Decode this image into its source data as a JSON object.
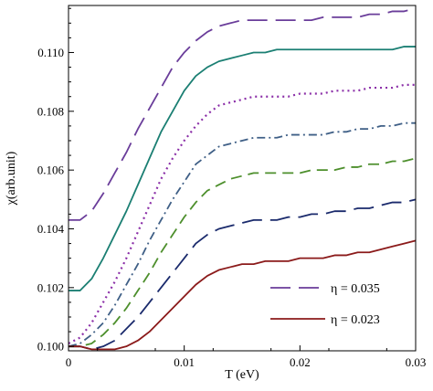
{
  "chart_data": {
    "type": "line",
    "xlabel": "T (eV)",
    "ylabel": "χ(arb.unit)",
    "xlim": [
      0,
      0.03
    ],
    "ylim": [
      0.09985,
      0.1116
    ],
    "xticks": [
      0,
      0.01,
      0.02,
      0.03
    ],
    "xtick_labels": [
      "0",
      "0.01",
      "0.02",
      "0.03"
    ],
    "yticks": [
      0.1,
      0.102,
      0.104,
      0.106,
      0.108,
      0.11
    ],
    "ytick_labels": [
      "0.100",
      "0.102",
      "0.104",
      "0.106",
      "0.108",
      "0.110"
    ],
    "grid": false,
    "legend_position": "bottom-right",
    "series": [
      {
        "name": "η = 0.035",
        "color": "#6a3d9a",
        "dash": "longdash",
        "x": [
          0,
          0.001,
          0.002,
          0.003,
          0.004,
          0.005,
          0.006,
          0.007,
          0.008,
          0.009,
          0.01,
          0.011,
          0.012,
          0.013,
          0.014,
          0.015,
          0.016,
          0.017,
          0.018,
          0.019,
          0.02,
          0.021,
          0.022,
          0.023,
          0.024,
          0.025,
          0.026,
          0.027,
          0.028,
          0.029,
          0.03
        ],
        "y": [
          0.1043,
          0.1043,
          0.1046,
          0.1052,
          0.1059,
          0.1066,
          0.1074,
          0.1081,
          0.1088,
          0.1095,
          0.11,
          0.1104,
          0.1107,
          0.1109,
          0.111,
          0.1111,
          0.1111,
          0.1111,
          0.1111,
          0.1111,
          0.1111,
          0.1111,
          0.1112,
          0.1112,
          0.1112,
          0.1112,
          0.1113,
          0.1113,
          0.1114,
          0.1114,
          0.1115
        ]
      },
      {
        "color": "#1b7f73",
        "dash": "solid",
        "x": [
          0,
          0.001,
          0.002,
          0.003,
          0.004,
          0.005,
          0.006,
          0.007,
          0.008,
          0.009,
          0.01,
          0.011,
          0.012,
          0.013,
          0.014,
          0.015,
          0.016,
          0.017,
          0.018,
          0.019,
          0.02,
          0.021,
          0.022,
          0.023,
          0.024,
          0.025,
          0.026,
          0.027,
          0.028,
          0.029,
          0.03
        ],
        "y": [
          0.1019,
          0.1019,
          0.1023,
          0.103,
          0.1038,
          0.1046,
          0.1055,
          0.1064,
          0.1073,
          0.108,
          0.1087,
          0.1092,
          0.1095,
          0.1097,
          0.1098,
          0.1099,
          0.11,
          0.11,
          0.1101,
          0.1101,
          0.1101,
          0.1101,
          0.1101,
          0.1101,
          0.1101,
          0.1101,
          0.1101,
          0.1101,
          0.1101,
          0.1102,
          0.1102
        ]
      },
      {
        "color": "#8b2fa8",
        "dash": "dot",
        "x": [
          0,
          0.001,
          0.002,
          0.003,
          0.004,
          0.005,
          0.006,
          0.007,
          0.008,
          0.009,
          0.01,
          0.011,
          0.012,
          0.013,
          0.014,
          0.015,
          0.016,
          0.017,
          0.018,
          0.019,
          0.02,
          0.021,
          0.022,
          0.023,
          0.024,
          0.025,
          0.026,
          0.027,
          0.028,
          0.029,
          0.03
        ],
        "y": [
          0.1001,
          0.1003,
          0.1008,
          0.1015,
          0.1022,
          0.103,
          0.1039,
          0.1048,
          0.1057,
          0.1064,
          0.107,
          0.1075,
          0.1079,
          0.1082,
          0.1083,
          0.1084,
          0.1085,
          0.1085,
          0.1085,
          0.1085,
          0.1086,
          0.1086,
          0.1086,
          0.1087,
          0.1087,
          0.1087,
          0.1088,
          0.1088,
          0.1088,
          0.1089,
          0.1089
        ]
      },
      {
        "color": "#3f5f86",
        "dash": "dashdot",
        "x": [
          0,
          0.001,
          0.002,
          0.003,
          0.004,
          0.005,
          0.006,
          0.007,
          0.008,
          0.009,
          0.01,
          0.011,
          0.012,
          0.013,
          0.014,
          0.015,
          0.016,
          0.017,
          0.018,
          0.019,
          0.02,
          0.021,
          0.022,
          0.023,
          0.024,
          0.025,
          0.026,
          0.027,
          0.028,
          0.029,
          0.03
        ],
        "y": [
          0.1,
          0.1001,
          0.1004,
          0.1008,
          0.1014,
          0.1021,
          0.1028,
          0.1036,
          0.1043,
          0.105,
          0.1056,
          0.1062,
          0.1065,
          0.1068,
          0.1069,
          0.107,
          0.1071,
          0.1071,
          0.1071,
          0.1072,
          0.1072,
          0.1072,
          0.1072,
          0.1073,
          0.1073,
          0.1074,
          0.1074,
          0.1075,
          0.1075,
          0.1076,
          0.1076
        ]
      },
      {
        "color": "#4d8f2c",
        "dash": "dash",
        "x": [
          0,
          0.001,
          0.002,
          0.003,
          0.004,
          0.005,
          0.006,
          0.007,
          0.008,
          0.009,
          0.01,
          0.011,
          0.012,
          0.013,
          0.014,
          0.015,
          0.016,
          0.017,
          0.018,
          0.019,
          0.02,
          0.021,
          0.022,
          0.023,
          0.024,
          0.025,
          0.026,
          0.027,
          0.028,
          0.029,
          0.03
        ],
        "y": [
          0.1,
          0.1,
          0.1001,
          0.1004,
          0.1008,
          0.1013,
          0.1019,
          0.1025,
          0.1032,
          0.1038,
          0.1044,
          0.1049,
          0.1053,
          0.1055,
          0.1057,
          0.1058,
          0.1059,
          0.1059,
          0.1059,
          0.1059,
          0.1059,
          0.106,
          0.106,
          0.106,
          0.1061,
          0.1061,
          0.1062,
          0.1062,
          0.1063,
          0.1063,
          0.1064
        ]
      },
      {
        "color": "#1a2a6c",
        "dash": "longdash",
        "x": [
          0,
          0.001,
          0.002,
          0.003,
          0.004,
          0.005,
          0.006,
          0.007,
          0.008,
          0.009,
          0.01,
          0.011,
          0.012,
          0.013,
          0.014,
          0.015,
          0.016,
          0.017,
          0.018,
          0.019,
          0.02,
          0.021,
          0.022,
          0.023,
          0.024,
          0.025,
          0.026,
          0.027,
          0.028,
          0.029,
          0.03
        ],
        "y": [
          0.1,
          0.1,
          0.0999,
          0.1,
          0.1002,
          0.1006,
          0.101,
          0.1015,
          0.102,
          0.1025,
          0.103,
          0.1035,
          0.1038,
          0.104,
          0.1041,
          0.1042,
          0.1043,
          0.1043,
          0.1043,
          0.1044,
          0.1044,
          0.1045,
          0.1045,
          0.1046,
          0.1046,
          0.1047,
          0.1047,
          0.1048,
          0.1049,
          0.1049,
          0.105
        ]
      },
      {
        "name": "η = 0.023",
        "color": "#8b1a1a",
        "dash": "solid",
        "x": [
          0,
          0.001,
          0.002,
          0.003,
          0.004,
          0.005,
          0.006,
          0.007,
          0.008,
          0.009,
          0.01,
          0.011,
          0.012,
          0.013,
          0.014,
          0.015,
          0.016,
          0.017,
          0.018,
          0.019,
          0.02,
          0.021,
          0.022,
          0.023,
          0.024,
          0.025,
          0.026,
          0.027,
          0.028,
          0.029,
          0.03
        ],
        "y": [
          0.1,
          0.1,
          0.0999,
          0.0999,
          0.0999,
          0.1,
          0.1002,
          0.1005,
          0.1009,
          0.1013,
          0.1017,
          0.1021,
          0.1024,
          0.1026,
          0.1027,
          0.1028,
          0.1028,
          0.1029,
          0.1029,
          0.1029,
          0.103,
          0.103,
          0.103,
          0.1031,
          0.1031,
          0.1032,
          0.1032,
          0.1033,
          0.1034,
          0.1035,
          0.1036
        ]
      }
    ]
  }
}
